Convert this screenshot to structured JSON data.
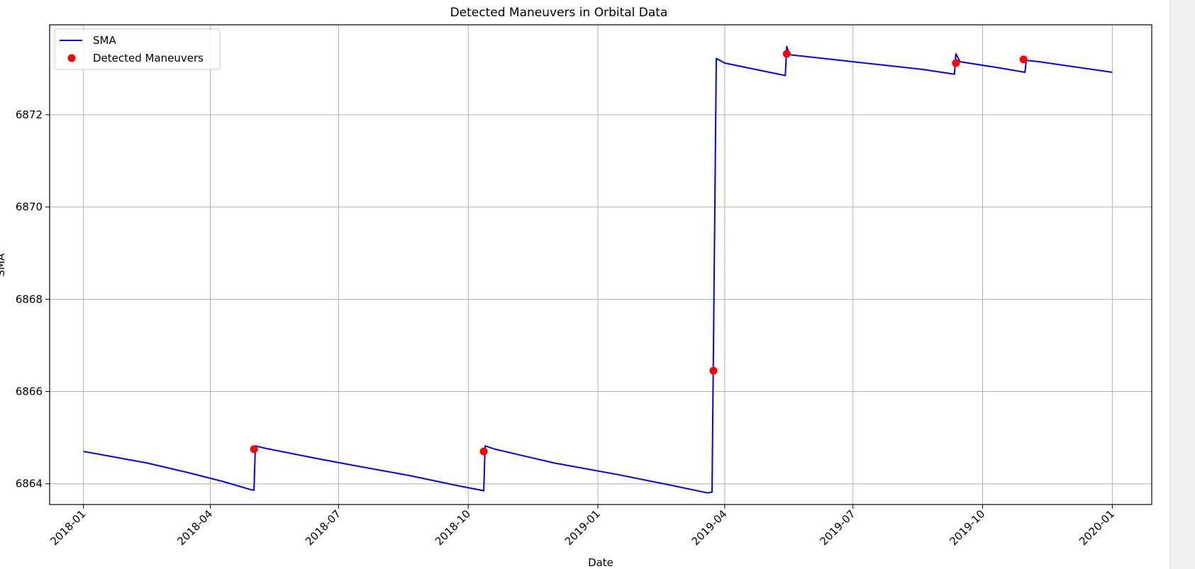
{
  "chart_data": {
    "type": "line",
    "title": "Detected Maneuvers in Orbital Data",
    "xlabel": "Date",
    "ylabel": "SMA",
    "xlim": [
      "2017-12-08",
      "2020-01-29"
    ],
    "ylim": [
      6863.55,
      6873.95
    ],
    "x_ticks": [
      "2018-01",
      "2018-04",
      "2018-07",
      "2018-10",
      "2019-01",
      "2019-04",
      "2019-07",
      "2019-10",
      "2020-01"
    ],
    "y_ticks": [
      6864,
      6866,
      6868,
      6870,
      6872
    ],
    "grid": true,
    "legend": "upper-left",
    "series": [
      {
        "name": "SMA",
        "mark": "line",
        "color": "#0000ff",
        "points": [
          [
            "2018-01-01",
            6864.7
          ],
          [
            "2018-02-15",
            6864.45
          ],
          [
            "2018-03-15",
            6864.25
          ],
          [
            "2018-04-10",
            6864.05
          ],
          [
            "2018-04-30",
            6863.87
          ],
          [
            "2018-05-02",
            6863.86
          ],
          [
            "2018-05-03",
            6864.82
          ],
          [
            "2018-05-10",
            6864.77
          ],
          [
            "2018-06-15",
            6864.55
          ],
          [
            "2018-07-15",
            6864.38
          ],
          [
            "2018-08-20",
            6864.18
          ],
          [
            "2018-09-25",
            6863.95
          ],
          [
            "2018-10-12",
            6863.85
          ],
          [
            "2018-10-13",
            6864.82
          ],
          [
            "2018-10-20",
            6864.75
          ],
          [
            "2018-12-01",
            6864.45
          ],
          [
            "2019-01-15",
            6864.2
          ],
          [
            "2019-02-20",
            6863.98
          ],
          [
            "2019-03-20",
            6863.8
          ],
          [
            "2019-03-23",
            6863.82
          ],
          [
            "2019-03-26",
            6873.22
          ],
          [
            "2019-04-01",
            6873.12
          ],
          [
            "2019-05-14",
            6872.85
          ],
          [
            "2019-05-15",
            6873.48
          ],
          [
            "2019-05-17",
            6873.3
          ],
          [
            "2019-07-01",
            6873.15
          ],
          [
            "2019-08-20",
            6872.98
          ],
          [
            "2019-09-11",
            6872.88
          ],
          [
            "2019-09-12",
            6873.32
          ],
          [
            "2019-09-15",
            6873.15
          ],
          [
            "2019-10-10",
            6873.03
          ],
          [
            "2019-10-31",
            6872.92
          ],
          [
            "2019-11-01",
            6873.18
          ],
          [
            "2019-11-10",
            6873.15
          ],
          [
            "2020-01-01",
            6872.92
          ]
        ]
      },
      {
        "name": "Detected Maneuvers",
        "mark": "scatter",
        "color": "#ff0000",
        "points": [
          [
            "2018-05-02",
            6864.75
          ],
          [
            "2018-10-12",
            6864.7
          ],
          [
            "2019-03-24",
            6866.45
          ],
          [
            "2019-05-15",
            6873.32
          ],
          [
            "2019-09-12",
            6873.12
          ],
          [
            "2019-10-30",
            6873.2
          ]
        ]
      }
    ]
  }
}
